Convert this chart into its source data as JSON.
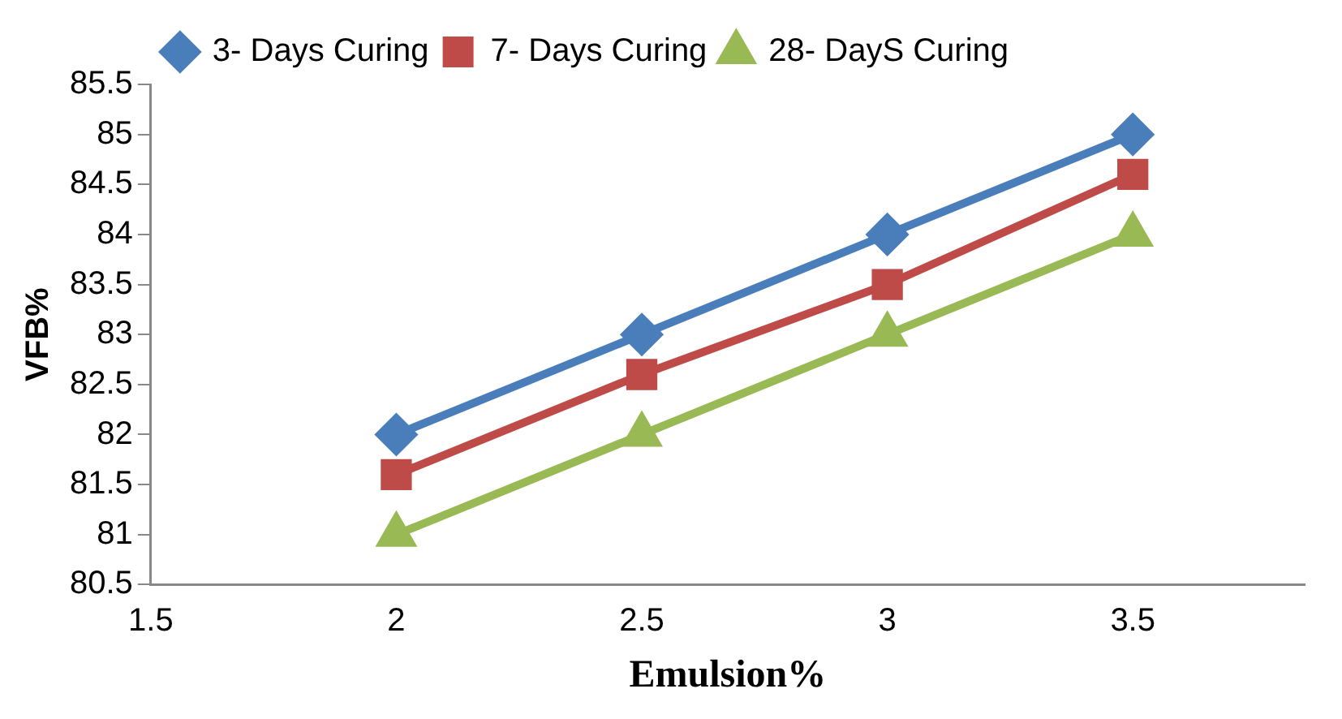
{
  "chart_data": {
    "type": "line",
    "xlabel": "Emulsion%",
    "ylabel": "VFB%",
    "x": [
      2,
      2.5,
      3,
      3.5
    ],
    "series": [
      {
        "name": "3- Days Curing",
        "color": "#4a7ebb",
        "marker": "diamond",
        "values": [
          82,
          83,
          84,
          85
        ]
      },
      {
        "name": "7- Days Curing",
        "color": "#be4b48",
        "marker": "square",
        "values": [
          81.6,
          82.6,
          83.5,
          84.6
        ]
      },
      {
        "name": "28- DayS Curing",
        "color": "#98b954",
        "marker": "triangle",
        "values": [
          81,
          82,
          83,
          84
        ]
      }
    ],
    "xlim": [
      1.5,
      3.85
    ],
    "xticks": [
      1.5,
      2,
      2.5,
      3,
      3.5
    ],
    "ylim": [
      80.5,
      85.5
    ],
    "yticks": [
      80.5,
      81,
      81.5,
      82,
      82.5,
      83,
      83.5,
      84,
      84.5,
      85,
      85.5
    ],
    "grid": false,
    "legend": "top left",
    "line_style": "solid"
  }
}
